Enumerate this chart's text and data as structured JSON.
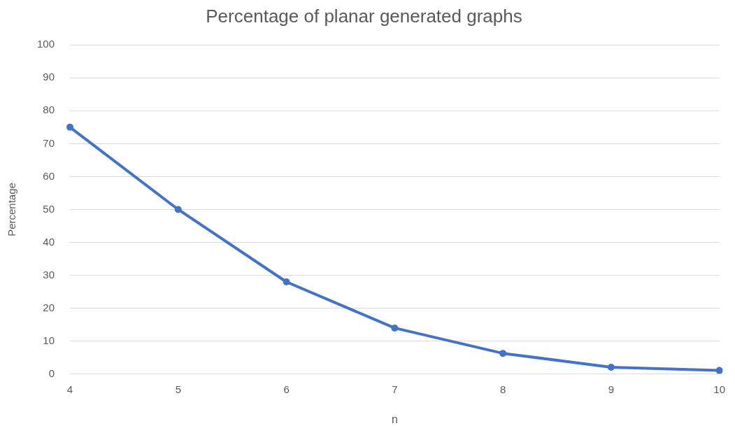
{
  "chart_data": {
    "type": "line",
    "title": "Percentage of planar generated graphs",
    "xlabel": "n",
    "ylabel": "Percentage",
    "categories": [
      "4",
      "5",
      "6",
      "7",
      "8",
      "9",
      "10"
    ],
    "series": [
      {
        "color": "#4472c4",
        "values": [
          75,
          50,
          28,
          14,
          6.3,
          2.1,
          1.1
        ]
      }
    ],
    "ylim": [
      0,
      100
    ],
    "yticks": [
      0,
      10,
      20,
      30,
      40,
      50,
      60,
      70,
      80,
      90,
      100
    ],
    "grid": "y",
    "legend": false,
    "marker": "circle",
    "line_style": "solid"
  }
}
